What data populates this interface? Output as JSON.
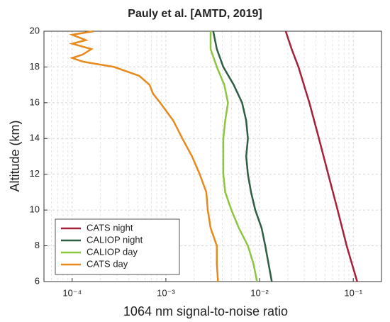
{
  "chart_data": {
    "type": "line",
    "title": "Pauly et al. [AMTD, 2019]",
    "x_label": "1064 nm signal-to-noise ratio",
    "y_label": "Altitude (km)",
    "log_x": true,
    "grid": true,
    "legend": "lower left",
    "xlim": [
      5e-05,
      0.2
    ],
    "ylim": [
      6,
      20
    ],
    "xticks": [
      {
        "value": 0.0001,
        "label": "10⁻⁴"
      },
      {
        "value": 0.001,
        "label": "10⁻³"
      },
      {
        "value": 0.01,
        "label": "10⁻²"
      },
      {
        "value": 0.1,
        "label": "10⁻¹"
      }
    ],
    "yticks": [
      6,
      8,
      10,
      12,
      14,
      16,
      18,
      20
    ],
    "series": [
      {
        "name": "CATS night",
        "color": "#a6203a",
        "y": [
          6,
          8,
          10,
          12,
          14,
          16,
          18,
          19,
          20
        ],
        "values": [
          0.11,
          0.085,
          0.068,
          0.054,
          0.043,
          0.034,
          0.026,
          0.022,
          0.019
        ]
      },
      {
        "name": "CALIOP night",
        "color": "#2e5e44",
        "y": [
          6,
          8,
          9,
          10,
          11,
          12,
          13,
          14,
          15,
          16,
          17,
          18,
          19,
          20
        ],
        "values": [
          0.0135,
          0.0115,
          0.0105,
          0.009,
          0.0081,
          0.0075,
          0.0072,
          0.0075,
          0.0072,
          0.0065,
          0.0053,
          0.0041,
          0.0035,
          0.0032
        ]
      },
      {
        "name": "CALIOP day",
        "color": "#8cc63f",
        "y": [
          6,
          7,
          8,
          9,
          10,
          11,
          12,
          13,
          14,
          15,
          16,
          17,
          18,
          19,
          20
        ],
        "values": [
          0.0094,
          0.0086,
          0.0075,
          0.006,
          0.005,
          0.0043,
          0.0041,
          0.0041,
          0.0041,
          0.0043,
          0.0046,
          0.0042,
          0.0035,
          0.003,
          0.003
        ]
      },
      {
        "name": "CATS day",
        "color": "#e8891b",
        "y": [
          6,
          7,
          8,
          9,
          10,
          11,
          12,
          13,
          14,
          15,
          16,
          16.5,
          17,
          17.5,
          18,
          18.3,
          18.5,
          18.7,
          19,
          19.3,
          19.5,
          19.8,
          20
        ],
        "values": [
          0.0036,
          0.0035,
          0.0035,
          0.003,
          0.0028,
          0.0027,
          0.0023,
          0.0019,
          0.0015,
          0.0012,
          0.00087,
          0.00073,
          0.00067,
          0.00052,
          0.00028,
          0.00013,
          0.0001,
          0.00013,
          0.00016,
          0.0001,
          0.00014,
          0.0001,
          0.00017
        ]
      }
    ]
  }
}
